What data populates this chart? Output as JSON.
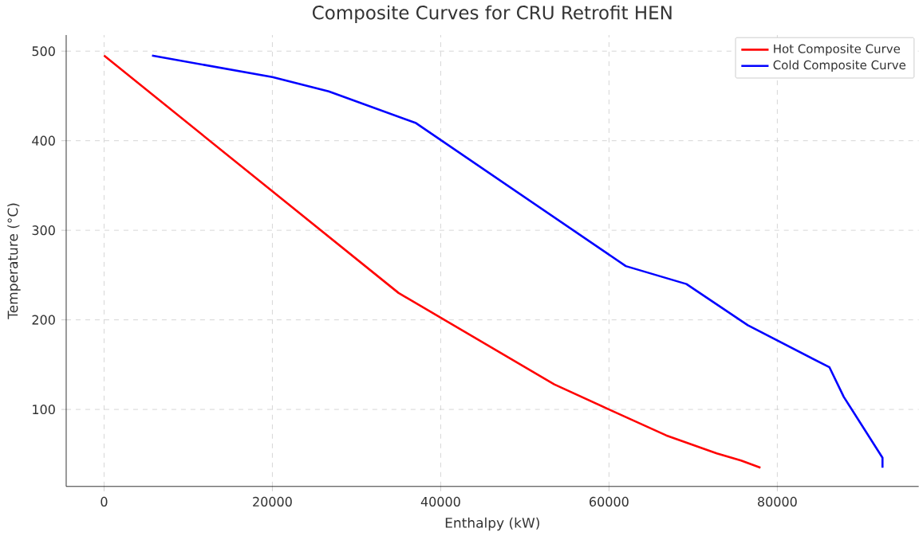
{
  "chart_data": {
    "type": "line",
    "title": "Composite Curves for CRU Retrofit HEN",
    "xlabel": "Enthalpy (kW)",
    "ylabel": "Temperature (°C)",
    "series": [
      {
        "name": "Hot Composite Curve",
        "color": "#ff0000",
        "x": [
          0,
          35000,
          53500,
          60000,
          66800,
          72800,
          75700,
          78000
        ],
        "values": [
          495,
          230,
          128,
          100,
          71,
          51,
          43,
          35
        ]
      },
      {
        "name": "Cold Composite Curve",
        "color": "#0000ff",
        "x": [
          5700,
          20000,
          26700,
          37000,
          62000,
          69200,
          76500,
          86200,
          87900,
          92500,
          92500
        ],
        "values": [
          495,
          471,
          455,
          420,
          260,
          240,
          194,
          147,
          114,
          46,
          35
        ]
      }
    ],
    "xlim": [
      -4500,
      96800
    ],
    "ylim": [
      14,
      518
    ],
    "xticks": [
      0,
      20000,
      40000,
      60000,
      80000
    ],
    "yticks": [
      100,
      200,
      300,
      400,
      500
    ],
    "grid": true,
    "legend": "top right",
    "line_style": "solid",
    "marker": "none"
  }
}
